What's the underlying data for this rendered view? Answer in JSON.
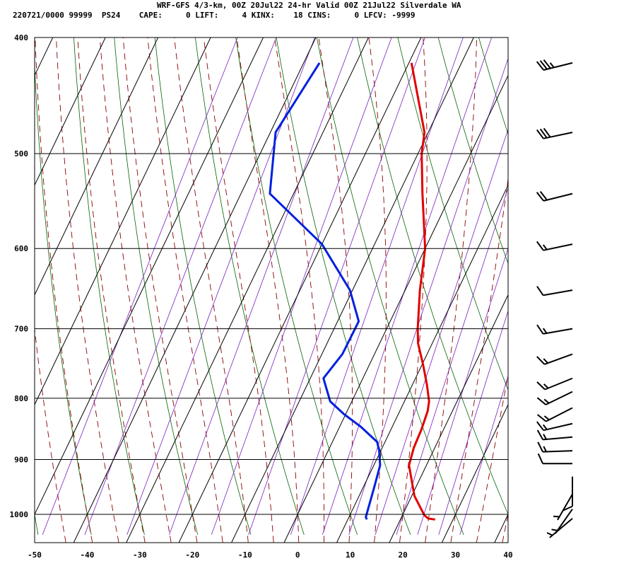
{
  "header": {
    "title_line": "WRF-GFS 4/3-km, 00Z 20Jul22 24-hr Valid 00Z 21Jul22 Silverdale WA",
    "info_line": "220721/0000 99999  PS24    CAPE:     0 LIFT:     4 KINX:    18 CINS:     0 LFCV: -9999"
  },
  "chart_data": {
    "type": "skew-t",
    "x_range": [
      -50,
      40
    ],
    "x_ticks": [
      -50,
      -40,
      -30,
      -20,
      -10,
      0,
      10,
      20,
      30,
      40
    ],
    "p_range": [
      400,
      1040
    ],
    "p_ticks": [
      400,
      500,
      600,
      700,
      800,
      900,
      1000
    ],
    "grid": true,
    "colors": {
      "temperature": "#e00000",
      "dewpoint": "#0020e0",
      "dry_adiabat": "#006400",
      "moist_adiabat": "#8b0000",
      "mixing_ratio": "#7a1fc0",
      "grid": "#000000"
    },
    "temperature_profile": [
      {
        "p": 1010,
        "x": 26.6
      },
      {
        "p": 1008,
        "x": 25.2
      },
      {
        "p": 1002,
        "x": 24.2
      },
      {
        "p": 990,
        "x": 23.0
      },
      {
        "p": 965,
        "x": 20.5
      },
      {
        "p": 940,
        "x": 18.8
      },
      {
        "p": 910,
        "x": 16.7
      },
      {
        "p": 880,
        "x": 16.0
      },
      {
        "p": 850,
        "x": 15.8
      },
      {
        "p": 820,
        "x": 15.3
      },
      {
        "p": 805,
        "x": 14.7
      },
      {
        "p": 780,
        "x": 12.8
      },
      {
        "p": 750,
        "x": 10.2
      },
      {
        "p": 720,
        "x": 7.3
      },
      {
        "p": 700,
        "x": 5.9
      },
      {
        "p": 650,
        "x": 2.8
      },
      {
        "p": 600,
        "x": 0.0
      },
      {
        "p": 540,
        "x": -5.5
      },
      {
        "p": 500,
        "x": -9.3
      },
      {
        "p": 480,
        "x": -10.7
      },
      {
        "p": 420,
        "x": -19.5
      }
    ],
    "dewpoint_profile": [
      {
        "p": 1010,
        "x": 13.6
      },
      {
        "p": 1005,
        "x": 13.2
      },
      {
        "p": 950,
        "x": 12.1
      },
      {
        "p": 910,
        "x": 11.2
      },
      {
        "p": 885,
        "x": 9.7
      },
      {
        "p": 870,
        "x": 8.5
      },
      {
        "p": 845,
        "x": 4.0
      },
      {
        "p": 825,
        "x": -0.3
      },
      {
        "p": 805,
        "x": -4.1
      },
      {
        "p": 770,
        "x": -7.5
      },
      {
        "p": 735,
        "x": -6.1
      },
      {
        "p": 700,
        "x": -6.0
      },
      {
        "p": 690,
        "x": -6.0
      },
      {
        "p": 650,
        "x": -10.5
      },
      {
        "p": 595,
        "x": -20.0
      },
      {
        "p": 540,
        "x": -34.5
      },
      {
        "p": 480,
        "x": -39.0
      },
      {
        "p": 420,
        "x": -37.0
      }
    ],
    "wind_barbs": [
      {
        "p": 420,
        "dir": 256,
        "kt": 35
      },
      {
        "p": 480,
        "dir": 258,
        "kt": 30
      },
      {
        "p": 540,
        "dir": 256,
        "kt": 20
      },
      {
        "p": 595,
        "dir": 258,
        "kt": 15
      },
      {
        "p": 650,
        "dir": 260,
        "kt": 10
      },
      {
        "p": 700,
        "dir": 260,
        "kt": 15
      },
      {
        "p": 735,
        "dir": 250,
        "kt": 15
      },
      {
        "p": 770,
        "dir": 248,
        "kt": 15
      },
      {
        "p": 790,
        "dir": 244,
        "kt": 15
      },
      {
        "p": 815,
        "dir": 243,
        "kt": 15
      },
      {
        "p": 840,
        "dir": 257,
        "kt": 15
      },
      {
        "p": 862,
        "dir": 265,
        "kt": 15
      },
      {
        "p": 885,
        "dir": 268,
        "kt": 15
      },
      {
        "p": 907,
        "dir": 270,
        "kt": 10
      },
      {
        "p": 930,
        "dir": 180,
        "kt": 10
      },
      {
        "p": 962,
        "dir": 210,
        "kt": 5
      },
      {
        "p": 990,
        "dir": 215,
        "kt": 5
      },
      {
        "p": 1008,
        "dir": 230,
        "kt": 5
      }
    ],
    "dry_adiabat_starts": [
      -60,
      -50,
      -40,
      -30,
      -20,
      -10,
      0,
      10,
      20,
      30,
      40,
      50,
      60,
      70
    ],
    "moist_adiabat_starts": [
      -45,
      -40,
      -35,
      -30,
      -25,
      -20,
      -15,
      -10,
      -5,
      0,
      5,
      10,
      15,
      20,
      25,
      30,
      35,
      40
    ],
    "mixing_ratio_starts": [
      -47,
      -39,
      -31,
      -23,
      -15,
      -8,
      0,
      6,
      11,
      16,
      20,
      24,
      28,
      32
    ]
  }
}
